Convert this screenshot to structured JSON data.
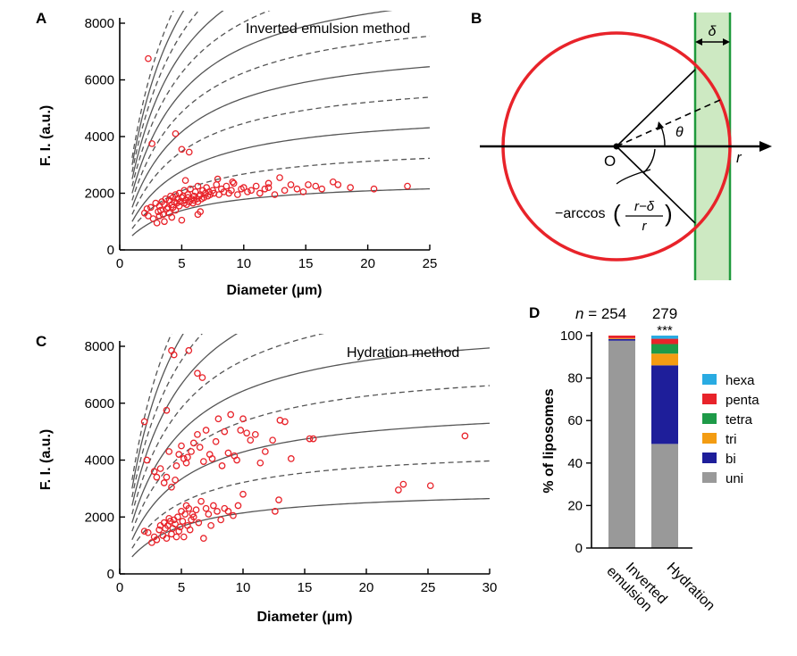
{
  "colors": {
    "points": "#e8232a",
    "circle": "#e8232a",
    "band_fill": "#cde9c2",
    "band_line": "#1f9a3c",
    "axis": "#000000",
    "fit_line": "#555555"
  },
  "panels": {
    "A": {
      "letter": "A",
      "annotation": "Inverted emulsion method",
      "xlabel": "Diameter (µm)",
      "ylabel": "F. I. (a.u.)"
    },
    "B": {
      "letter": "B",
      "delta_label": "δ",
      "theta_label": "θ",
      "origin_label": "O",
      "r_label": "r",
      "arccos_prefix": "−arccos",
      "arccos_num": "r−δ",
      "arccos_den": "r"
    },
    "C": {
      "letter": "C",
      "annotation": "Hydration method",
      "xlabel": "Diameter (µm)",
      "ylabel": "F. I. (a.u.)"
    },
    "D": {
      "letter": "D",
      "n_prefix": "n",
      "n_sep": " = ",
      "n_values": [
        "254",
        "279"
      ],
      "significance": "***",
      "ylabel": "% of liposomes"
    }
  },
  "chart_data": [
    {
      "panel": "A",
      "type": "scatter",
      "title": "Inverted emulsion method",
      "xlabel": "Diameter (µm)",
      "ylabel": "F. I. (a.u.)",
      "xlim": [
        0,
        25
      ],
      "ylim": [
        0,
        8000
      ],
      "xticks": [
        0,
        5,
        10,
        15,
        20,
        25
      ],
      "yticks": [
        0,
        2000,
        4000,
        6000,
        8000
      ],
      "grid": false,
      "curve_asymptotes_solid": [
        2500,
        5000,
        7500,
        10000,
        12500,
        15000
      ],
      "curve_asymptotes_dashed": [
        3750,
        6250,
        8750,
        11250,
        13750,
        16250
      ],
      "x": [
        2.0,
        2.2,
        2.3,
        2.5,
        2.7,
        2.9,
        3.0,
        3.1,
        3.2,
        3.3,
        3.4,
        3.5,
        3.6,
        3.7,
        3.8,
        3.9,
        4.0,
        4.0,
        4.1,
        4.2,
        4.3,
        4.3,
        4.4,
        4.5,
        4.5,
        4.6,
        4.7,
        4.8,
        4.8,
        4.9,
        5.0,
        5.0,
        5.1,
        5.2,
        5.2,
        5.3,
        5.4,
        5.5,
        5.5,
        5.6,
        5.7,
        5.8,
        5.9,
        6.0,
        6.0,
        6.1,
        6.2,
        6.3,
        6.3,
        6.4,
        6.5,
        6.6,
        6.7,
        6.8,
        6.9,
        7.0,
        7.1,
        7.2,
        7.3,
        7.5,
        7.6,
        7.8,
        8.0,
        8.2,
        8.4,
        8.6,
        8.8,
        9.0,
        9.2,
        9.5,
        9.8,
        10.0,
        10.3,
        10.6,
        11.0,
        11.3,
        11.7,
        12.0,
        12.5,
        12.9,
        13.3,
        13.8,
        14.3,
        14.8,
        15.2,
        15.8,
        16.3,
        17.2,
        17.6,
        18.6,
        20.5,
        23.2,
        2.3,
        2.6,
        4.5,
        5.0,
        5.6,
        4.2,
        6.3,
        6.5,
        3.2,
        3.6,
        5.3,
        7.9,
        9.1,
        12.0
      ],
      "y": [
        1300,
        1450,
        1200,
        1500,
        1100,
        1650,
        950,
        1350,
        1550,
        1400,
        1700,
        1250,
        1600,
        1800,
        1450,
        1500,
        1750,
        1300,
        1900,
        1600,
        1500,
        1850,
        1700,
        1950,
        1400,
        1650,
        1800,
        2000,
        1550,
        1700,
        1850,
        1050,
        1900,
        1650,
        2100,
        1750,
        1600,
        1950,
        1850,
        1700,
        2150,
        1800,
        1650,
        1900,
        1750,
        2050,
        1800,
        1700,
        2250,
        1900,
        1950,
        1800,
        2100,
        1850,
        2000,
        2200,
        1900,
        2050,
        1950,
        2100,
        2000,
        2300,
        1950,
        2150,
        2050,
        2250,
        2000,
        2100,
        2350,
        1950,
        2150,
        2200,
        2050,
        2100,
        2250,
        2000,
        2150,
        2200,
        1950,
        2550,
        2100,
        2300,
        2150,
        2050,
        2300,
        2250,
        2150,
        2400,
        2300,
        2200,
        2150,
        2250,
        6750,
        3750,
        4100,
        3550,
        3450,
        1150,
        1250,
        1350,
        1200,
        1000,
        2450,
        2500,
        2400,
        2350
      ]
    },
    {
      "panel": "C",
      "type": "scatter",
      "title": "Hydration method",
      "xlabel": "Diameter (µm)",
      "ylabel": "F. I. (a.u.)",
      "xlim": [
        0,
        30
      ],
      "ylim": [
        0,
        8000
      ],
      "xticks": [
        0,
        5,
        10,
        15,
        20,
        25,
        30
      ],
      "yticks": [
        0,
        2000,
        4000,
        6000,
        8000
      ],
      "grid": false,
      "curve_asymptotes_solid": [
        3000,
        6000,
        9000,
        12000,
        15000
      ],
      "curve_asymptotes_dashed": [
        4500,
        7500,
        10500,
        13500,
        16500
      ],
      "x": [
        2.0,
        2.3,
        2.6,
        2.8,
        3.0,
        3.2,
        3.3,
        3.5,
        3.6,
        3.7,
        3.8,
        3.9,
        4.0,
        4.1,
        4.2,
        4.3,
        4.4,
        4.5,
        4.6,
        4.7,
        4.8,
        4.9,
        5.0,
        5.1,
        5.2,
        5.3,
        5.4,
        5.5,
        5.6,
        5.7,
        5.8,
        5.9,
        6.0,
        6.2,
        6.4,
        6.6,
        6.8,
        7.0,
        7.2,
        7.4,
        7.6,
        7.9,
        8.2,
        8.5,
        8.8,
        9.2,
        9.6,
        10.0,
        12.6,
        12.9,
        22.6,
        23.0,
        25.2,
        2.0,
        2.2,
        2.8,
        3.0,
        3.3,
        3.6,
        3.8,
        4.0,
        4.2,
        4.5,
        4.6,
        4.8,
        5.0,
        5.2,
        5.4,
        5.5,
        5.8,
        6.0,
        6.3,
        6.5,
        6.8,
        7.0,
        7.3,
        7.5,
        7.8,
        8.0,
        8.3,
        8.5,
        8.8,
        9.0,
        9.3,
        9.5,
        9.8,
        10.0,
        10.3,
        10.6,
        11.0,
        11.4,
        11.8,
        12.4,
        13.0,
        13.4,
        13.9,
        15.4,
        15.7,
        28.0,
        4.2,
        4.4,
        5.6,
        6.3,
        6.7,
        3.8
      ],
      "y": [
        1500,
        1450,
        1100,
        1300,
        1200,
        1550,
        1700,
        1350,
        1800,
        1600,
        1250,
        1700,
        1950,
        1850,
        1400,
        1600,
        1900,
        1750,
        1300,
        2000,
        1500,
        1650,
        2200,
        1850,
        1300,
        2100,
        2400,
        1700,
        2300,
        1550,
        1900,
        2100,
        2000,
        2250,
        1800,
        2550,
        1250,
        2300,
        2100,
        1700,
        2400,
        2200,
        1900,
        2300,
        2200,
        2050,
        2400,
        2800,
        2200,
        2600,
        2950,
        3150,
        3100,
        5350,
        4000,
        3600,
        3400,
        3700,
        3200,
        3400,
        4300,
        3050,
        3300,
        3800,
        4200,
        4500,
        4050,
        3900,
        4100,
        4300,
        4600,
        4900,
        4450,
        3950,
        5050,
        4200,
        4050,
        4650,
        5450,
        3800,
        5000,
        4250,
        5600,
        4150,
        4000,
        5050,
        5450,
        4950,
        4700,
        4900,
        3900,
        4300,
        4700,
        5400,
        5350,
        4050,
        4750,
        4750,
        4850,
        7850,
        7700,
        7850,
        7050,
        6900,
        5750
      ]
    },
    {
      "panel": "D",
      "type": "bar",
      "stacked": true,
      "ylabel": "% of liposomes",
      "ylim": [
        0,
        100
      ],
      "yticks": [
        0,
        20,
        40,
        60,
        80,
        100
      ],
      "categories": [
        "Inverted\nemulsion",
        "Hydration"
      ],
      "legend_position": "right",
      "series": [
        {
          "name": "uni",
          "color": "#999999",
          "values": [
            97.6,
            49.0
          ]
        },
        {
          "name": "bi",
          "color": "#1e1e9a",
          "values": [
            0.8,
            37.0
          ]
        },
        {
          "name": "tri",
          "color": "#f39c12",
          "values": [
            0.4,
            5.5
          ]
        },
        {
          "name": "tetra",
          "color": "#1e9a48",
          "values": [
            0.0,
            4.5
          ]
        },
        {
          "name": "penta",
          "color": "#e8232a",
          "values": [
            1.2,
            2.5
          ]
        },
        {
          "name": "hexa",
          "color": "#29abe2",
          "values": [
            0.0,
            1.5
          ]
        }
      ]
    }
  ]
}
